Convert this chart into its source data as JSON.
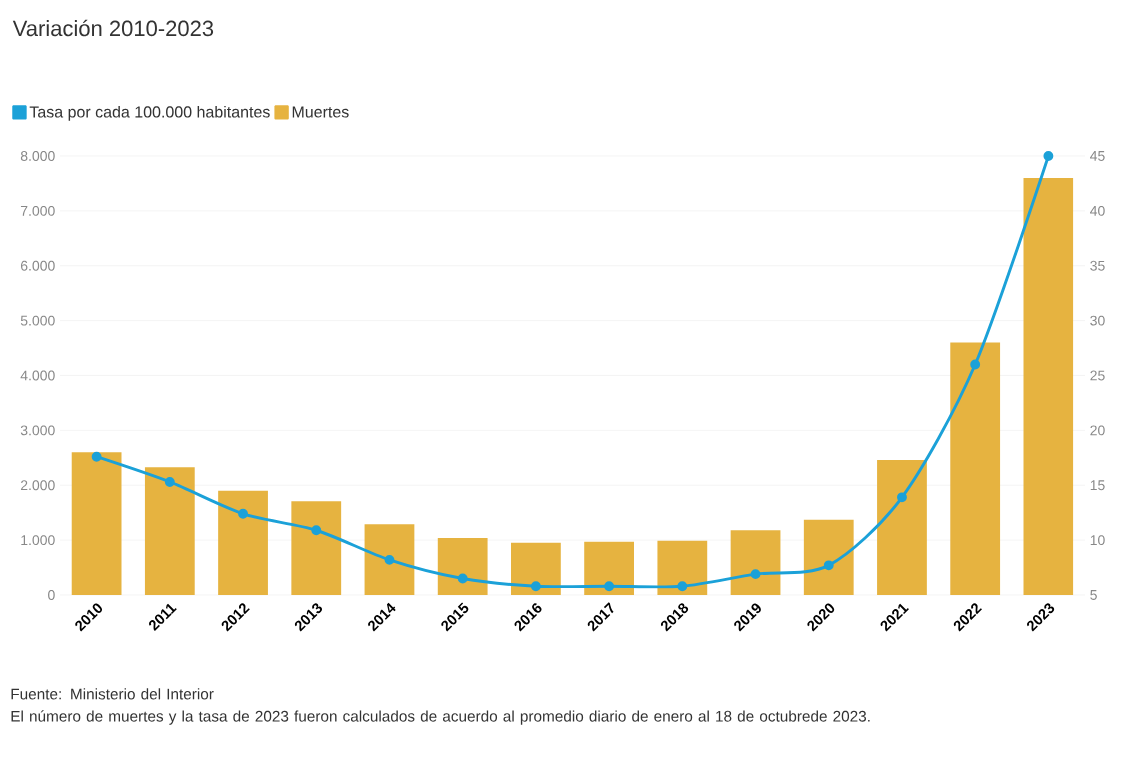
{
  "chart_data": {
    "type": "bar",
    "title": "Variación 2010-2023",
    "categories": [
      "2010",
      "2011",
      "2012",
      "2013",
      "2014",
      "2015",
      "2016",
      "2017",
      "2018",
      "2019",
      "2020",
      "2021",
      "2022",
      "2023"
    ],
    "series": [
      {
        "name": "Tasa por cada 100.000 habitantes",
        "type": "line",
        "axis": "y2",
        "color": "#1ba1d8",
        "values": [
          17.6,
          15.3,
          12.4,
          10.9,
          8.2,
          6.5,
          5.8,
          5.8,
          5.8,
          6.9,
          7.7,
          13.9,
          26.0,
          45
        ]
      },
      {
        "name": "Muertes",
        "color": "#e6b340",
        "values": [
          2600,
          2330,
          1900,
          1710,
          1290,
          1040,
          950,
          970,
          990,
          1180,
          1370,
          2460,
          4600,
          7600
        ]
      }
    ],
    "ylim": [
      0,
      8000
    ],
    "yticks": [
      0,
      {
        "value": 1000,
        "label": "1.000"
      },
      {
        "value": 2000,
        "label": "2.000"
      },
      {
        "value": 3000,
        "label": "3.000"
      },
      {
        "value": 4000,
        "label": "4.000"
      },
      {
        "value": 5000,
        "label": "5.000"
      },
      {
        "value": 6000,
        "label": "6.000"
      },
      {
        "value": 7000,
        "label": "7.000"
      },
      {
        "value": 8000,
        "label": "8.000"
      }
    ],
    "y2lim": [
      5,
      45
    ],
    "y2ticks": [
      5,
      10,
      15,
      20,
      25,
      30,
      35,
      40,
      45
    ],
    "grid": "y",
    "legend": "top left",
    "marker": "circle",
    "line_style": "solid",
    "annotations": [
      "Fuente: Ministerio del Interior",
      "El número de muertes y la tasa de 2023 fueron calculados de acuerdo al promedio diario de enero al 18 de octubrede 2023."
    ]
  }
}
